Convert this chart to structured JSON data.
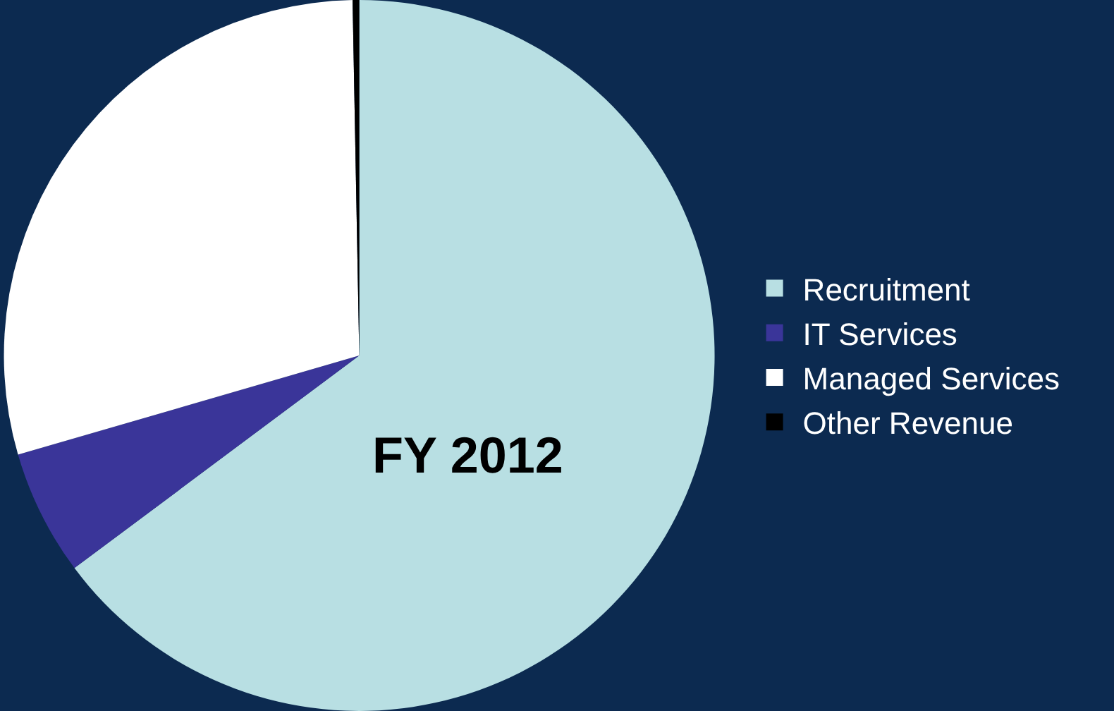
{
  "chart_data": {
    "type": "pie",
    "categories": [
      "Recruitment",
      "IT Services",
      "Managed Services",
      "Other Revenue"
    ],
    "values": [
      64.8,
      5.7,
      29.2,
      0.3
    ],
    "colors": [
      "#b8dfe3",
      "#3a3599",
      "#ffffff",
      "#000000"
    ],
    "annotations": [
      "FY 2012"
    ],
    "legend": "right"
  }
}
